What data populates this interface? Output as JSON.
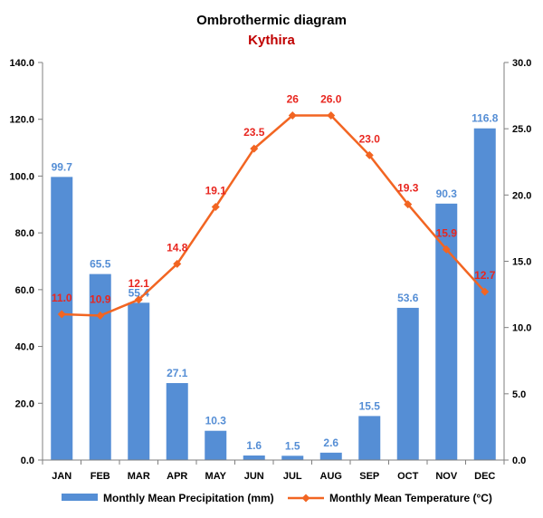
{
  "chart_data": {
    "type": "bar+line",
    "title": "Ombrothermic diagram",
    "subtitle": "Kythira",
    "categories": [
      "JAN",
      "FEB",
      "MAR",
      "APR",
      "MAY",
      "JUN",
      "JUL",
      "AUG",
      "SEP",
      "OCT",
      "NOV",
      "DEC"
    ],
    "series": [
      {
        "name": "Monthly Mean Precipitation (mm)",
        "type": "bar",
        "axis": "left",
        "values": [
          99.7,
          65.5,
          55.4,
          27.1,
          10.3,
          1.6,
          1.5,
          2.6,
          15.5,
          53.6,
          90.3,
          116.8
        ],
        "labels": [
          "99.7",
          "65.5",
          "55.4",
          "27.1",
          "10.3",
          "1.6",
          "1.5",
          "2.6",
          "15.5",
          "53.6",
          "90.3",
          "116.8"
        ],
        "color": "#558ed5"
      },
      {
        "name": "Monthly Mean Temperature (°C)",
        "type": "line",
        "axis": "right",
        "values": [
          11.0,
          10.9,
          12.1,
          14.8,
          19.1,
          23.5,
          26,
          26.0,
          23.0,
          19.3,
          15.9,
          12.7
        ],
        "labels": [
          "11.0",
          "10.9",
          "12.1",
          "14.8",
          "19.1",
          "23.5",
          "26",
          "26.0",
          "23.0",
          "19.3",
          "15.9",
          "12.7"
        ],
        "color": "#f26522",
        "label_color": "#e8261f"
      }
    ],
    "y_left": {
      "range": [
        0,
        140
      ],
      "ticks": [
        "0.0",
        "20.0",
        "40.0",
        "60.0",
        "80.0",
        "100.0",
        "120.0",
        "140.0"
      ]
    },
    "y_right": {
      "range": [
        0,
        30
      ],
      "ticks": [
        "0.0",
        "5.0",
        "10.0",
        "15.0",
        "20.0",
        "25.0",
        "30.0"
      ]
    },
    "grid": false,
    "legend": "bottom",
    "subtitle_color": "#c00000"
  }
}
